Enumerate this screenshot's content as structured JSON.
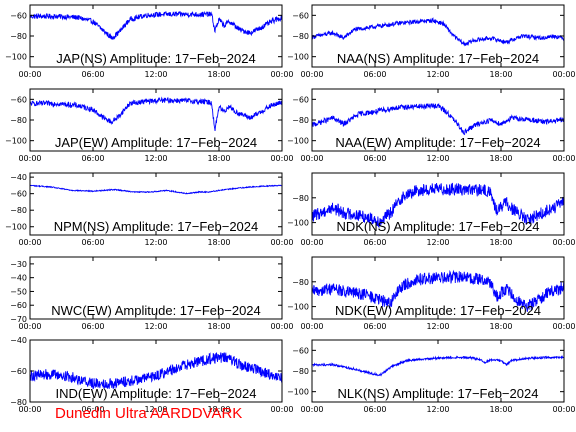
{
  "credit": "Dunedin Ultra AARDDVARK",
  "series_color": "#0000ff",
  "chart_data": [
    {
      "type": "line",
      "title": "JAP(NS) Amplitude: 17−Feb−2024",
      "ylim": [
        -110,
        -50
      ],
      "yticks": [
        {
          "v": -60,
          "t": "−60"
        },
        {
          "v": -80,
          "t": "−80"
        },
        {
          "v": -100,
          "t": "−100"
        }
      ],
      "xticks": [
        "00:00",
        "06:00",
        "12:00",
        "18:00",
        "00:00"
      ],
      "grid": false,
      "series": [
        {
          "values": [
            [
              0,
              -61
            ],
            [
              2.5,
              -61
            ],
            [
              4.5,
              -62
            ],
            [
              6,
              -66
            ],
            [
              7,
              -75
            ],
            [
              7.8,
              -82
            ],
            [
              8.5,
              -76
            ],
            [
              9.5,
              -64
            ],
            [
              11,
              -60
            ],
            [
              12.5,
              -59
            ],
            [
              14,
              -59
            ],
            [
              16,
              -59
            ],
            [
              17.3,
              -59
            ],
            [
              17.6,
              -75
            ],
            [
              18,
              -64
            ],
            [
              18.5,
              -70
            ],
            [
              19,
              -66
            ],
            [
              19.5,
              -70
            ],
            [
              20,
              -74
            ],
            [
              21,
              -77
            ],
            [
              22,
              -72
            ],
            [
              23,
              -66
            ],
            [
              24,
              -62
            ]
          ],
          "noise": 2.5
        }
      ]
    },
    {
      "type": "line",
      "title": "NAA(NS) Amplitude: 17−Feb−2024",
      "ylim": [
        -110,
        -50
      ],
      "yticks": [
        {
          "v": -60,
          "t": "−60"
        },
        {
          "v": -80,
          "t": "−80"
        },
        {
          "v": -100,
          "t": "−100"
        }
      ],
      "xticks": [
        "00:00",
        "06:00",
        "12:00",
        "18:00",
        "00:00"
      ],
      "grid": false,
      "series": [
        {
          "values": [
            [
              0,
              -81
            ],
            [
              2,
              -77
            ],
            [
              3,
              -82
            ],
            [
              4,
              -74
            ],
            [
              6,
              -71
            ],
            [
              8,
              -68
            ],
            [
              10,
              -66
            ],
            [
              11.5,
              -65
            ],
            [
              12.5,
              -68
            ],
            [
              13.5,
              -80
            ],
            [
              14.5,
              -88
            ],
            [
              15.5,
              -84
            ],
            [
              17,
              -82
            ],
            [
              18.5,
              -86
            ],
            [
              20,
              -80
            ],
            [
              22,
              -82
            ],
            [
              23,
              -80
            ],
            [
              24,
              -82
            ]
          ],
          "noise": 2
        }
      ]
    },
    {
      "type": "line",
      "title": "JAP(EW) Amplitude: 17−Feb−2024",
      "ylim": [
        -110,
        -50
      ],
      "yticks": [
        {
          "v": -60,
          "t": "−60"
        },
        {
          "v": -80,
          "t": "−80"
        },
        {
          "v": -100,
          "t": "−100"
        }
      ],
      "xticks": [
        "00:00",
        "06:00",
        "12:00",
        "18:00",
        "00:00"
      ],
      "grid": false,
      "series": [
        {
          "values": [
            [
              0,
              -64
            ],
            [
              2.5,
              -64
            ],
            [
              4.5,
              -66
            ],
            [
              6,
              -70
            ],
            [
              7,
              -78
            ],
            [
              7.8,
              -82
            ],
            [
              8.5,
              -76
            ],
            [
              9.5,
              -64
            ],
            [
              11,
              -62
            ],
            [
              12.5,
              -61
            ],
            [
              14,
              -61
            ],
            [
              16,
              -62
            ],
            [
              17.3,
              -63
            ],
            [
              17.6,
              -90
            ],
            [
              18,
              -67
            ],
            [
              18.5,
              -72
            ],
            [
              19,
              -66
            ],
            [
              19.5,
              -72
            ],
            [
              20,
              -74
            ],
            [
              21,
              -78
            ],
            [
              22,
              -72
            ],
            [
              23,
              -66
            ],
            [
              24,
              -63
            ]
          ],
          "noise": 2.5
        }
      ]
    },
    {
      "type": "line",
      "title": "NAA(EW) Amplitude: 17−Feb−2024",
      "ylim": [
        -110,
        -50
      ],
      "yticks": [
        {
          "v": -60,
          "t": "−60"
        },
        {
          "v": -80,
          "t": "−80"
        },
        {
          "v": -100,
          "t": "−100"
        }
      ],
      "xticks": [
        "00:00",
        "06:00",
        "12:00",
        "18:00",
        "00:00"
      ],
      "grid": false,
      "series": [
        {
          "values": [
            [
              0,
              -85
            ],
            [
              2,
              -78
            ],
            [
              3,
              -84
            ],
            [
              4.5,
              -74
            ],
            [
              6,
              -72
            ],
            [
              8,
              -68
            ],
            [
              10,
              -67
            ],
            [
              12,
              -66
            ],
            [
              13,
              -74
            ],
            [
              14,
              -86
            ],
            [
              14.5,
              -92
            ],
            [
              15.5,
              -85
            ],
            [
              17,
              -80
            ],
            [
              18,
              -84
            ],
            [
              19,
              -78
            ],
            [
              21,
              -80
            ],
            [
              22,
              -82
            ],
            [
              24,
              -80
            ]
          ],
          "noise": 2.5
        }
      ]
    },
    {
      "type": "line",
      "title": "NPM(NS) Amplitude: 17−Feb−2024",
      "ylim": [
        -110,
        -35
      ],
      "yticks": [
        {
          "v": -40,
          "t": "−40"
        },
        {
          "v": -60,
          "t": "−60"
        },
        {
          "v": -80,
          "t": "−80"
        },
        {
          "v": -100,
          "t": "−100"
        }
      ],
      "xticks": [
        "00:00",
        "06:00",
        "12:00",
        "18:00",
        "00:00"
      ],
      "grid": false,
      "series": [
        {
          "values": [
            [
              0,
              -50
            ],
            [
              2,
              -52
            ],
            [
              4,
              -56
            ],
            [
              6,
              -57
            ],
            [
              8,
              -55
            ],
            [
              10,
              -58
            ],
            [
              11.5,
              -58
            ],
            [
              13,
              -56
            ],
            [
              15,
              -60
            ],
            [
              16,
              -58
            ],
            [
              17,
              -58
            ],
            [
              18,
              -56
            ],
            [
              20,
              -53
            ],
            [
              22,
              -51
            ],
            [
              24,
              -50
            ]
          ],
          "noise": 0.6
        }
      ]
    },
    {
      "type": "line",
      "title": "NDK(NS) Amplitude: 17−Feb−2024",
      "ylim": [
        -110,
        -60
      ],
      "yticks": [
        {
          "v": -80,
          "t": "−80"
        },
        {
          "v": -100,
          "t": "−100"
        }
      ],
      "xticks": [
        "00:00",
        "06:00",
        "12:00",
        "18:00",
        "00:00"
      ],
      "grid": false,
      "series": [
        {
          "values": [
            [
              0,
              -95
            ],
            [
              2,
              -88
            ],
            [
              3,
              -92
            ],
            [
              5,
              -95
            ],
            [
              6.5,
              -99
            ],
            [
              7.5,
              -92
            ],
            [
              8.5,
              -80
            ],
            [
              10,
              -74
            ],
            [
              12,
              -73
            ],
            [
              14,
              -73
            ],
            [
              16,
              -74
            ],
            [
              17,
              -75
            ],
            [
              17.5,
              -90
            ],
            [
              18.5,
              -84
            ],
            [
              19.5,
              -92
            ],
            [
              20.5,
              -98
            ],
            [
              21.5,
              -94
            ],
            [
              22.5,
              -90
            ],
            [
              23.5,
              -86
            ],
            [
              24,
              -83
            ]
          ],
          "noise": 5
        }
      ]
    },
    {
      "type": "line",
      "title": "NWC(EW) Amplitude: 17−Feb−2024",
      "ylim": [
        -70,
        -25
      ],
      "yticks": [
        {
          "v": -30,
          "t": "−30"
        },
        {
          "v": -40,
          "t": "−40"
        },
        {
          "v": -50,
          "t": "−50"
        },
        {
          "v": -60,
          "t": "−60"
        },
        {
          "v": -70,
          "t": "−70"
        }
      ],
      "xticks": [
        "00:00",
        "06:00",
        "12:00",
        "18:00",
        "00:00"
      ],
      "grid": false,
      "series": []
    },
    {
      "type": "line",
      "title": "NDK(EW) Amplitude: 17−Feb−2024",
      "ylim": [
        -110,
        -60
      ],
      "yticks": [
        {
          "v": -80,
          "t": "−80"
        },
        {
          "v": -100,
          "t": "−100"
        }
      ],
      "xticks": [
        "00:00",
        "06:00",
        "12:00",
        "18:00",
        "00:00"
      ],
      "grid": false,
      "series": [
        {
          "values": [
            [
              0,
              -88
            ],
            [
              2,
              -85
            ],
            [
              3,
              -88
            ],
            [
              5,
              -90
            ],
            [
              6.5,
              -95
            ],
            [
              7.5,
              -97
            ],
            [
              8.5,
              -84
            ],
            [
              10,
              -78
            ],
            [
              12,
              -77
            ],
            [
              14,
              -76
            ],
            [
              16,
              -78
            ],
            [
              17,
              -80
            ],
            [
              17.5,
              -92
            ],
            [
              18.5,
              -86
            ],
            [
              19.5,
              -94
            ],
            [
              20.5,
              -100
            ],
            [
              21.5,
              -95
            ],
            [
              22.5,
              -88
            ],
            [
              23.5,
              -86
            ],
            [
              24,
              -84
            ]
          ],
          "noise": 5
        }
      ]
    },
    {
      "type": "line",
      "title": "IND(EW) Amplitude: 17−Feb−2024",
      "ylim": [
        -80,
        -40
      ],
      "yticks": [
        {
          "v": -40,
          "t": "−40"
        },
        {
          "v": -60,
          "t": "−60"
        },
        {
          "v": -80,
          "t": "−80"
        }
      ],
      "xticks": [
        "00:00",
        "06:00",
        "12:00",
        "18:00",
        "00:00"
      ],
      "grid": false,
      "series": [
        {
          "values": [
            [
              0,
              -63
            ],
            [
              2,
              -62
            ],
            [
              4,
              -64
            ],
            [
              6,
              -68
            ],
            [
              8,
              -68
            ],
            [
              10,
              -66
            ],
            [
              12,
              -63
            ],
            [
              14,
              -58
            ],
            [
              16,
              -54
            ],
            [
              18,
              -51
            ],
            [
              19,
              -52
            ],
            [
              20,
              -56
            ],
            [
              22,
              -60
            ],
            [
              24,
              -65
            ]
          ],
          "noise": 3.5
        }
      ]
    },
    {
      "type": "line",
      "title": "NLK(NS) Amplitude: 17−Feb−2024",
      "ylim": [
        -110,
        -50
      ],
      "yticks": [
        {
          "v": -60,
          "t": "−60"
        },
        {
          "v": -80,
          "t": "−80"
        },
        {
          "v": -100,
          "t": "−100"
        }
      ],
      "xticks": [
        "00:00",
        "06:00",
        "12:00",
        "18:00",
        "00:00"
      ],
      "grid": false,
      "series": [
        {
          "values": [
            [
              0,
              -74
            ],
            [
              2,
              -74
            ],
            [
              4,
              -78
            ],
            [
              5.5,
              -82
            ],
            [
              6.5,
              -84
            ],
            [
              7.5,
              -76
            ],
            [
              9,
              -70
            ],
            [
              11,
              -68
            ],
            [
              13,
              -67
            ],
            [
              15,
              -67
            ],
            [
              16,
              -69
            ],
            [
              16.5,
              -72
            ],
            [
              17,
              -69
            ],
            [
              18,
              -70
            ],
            [
              18.5,
              -74
            ],
            [
              19,
              -70
            ],
            [
              20,
              -68
            ],
            [
              22,
              -67
            ],
            [
              24,
              -67
            ]
          ],
          "noise": 1
        }
      ]
    }
  ]
}
